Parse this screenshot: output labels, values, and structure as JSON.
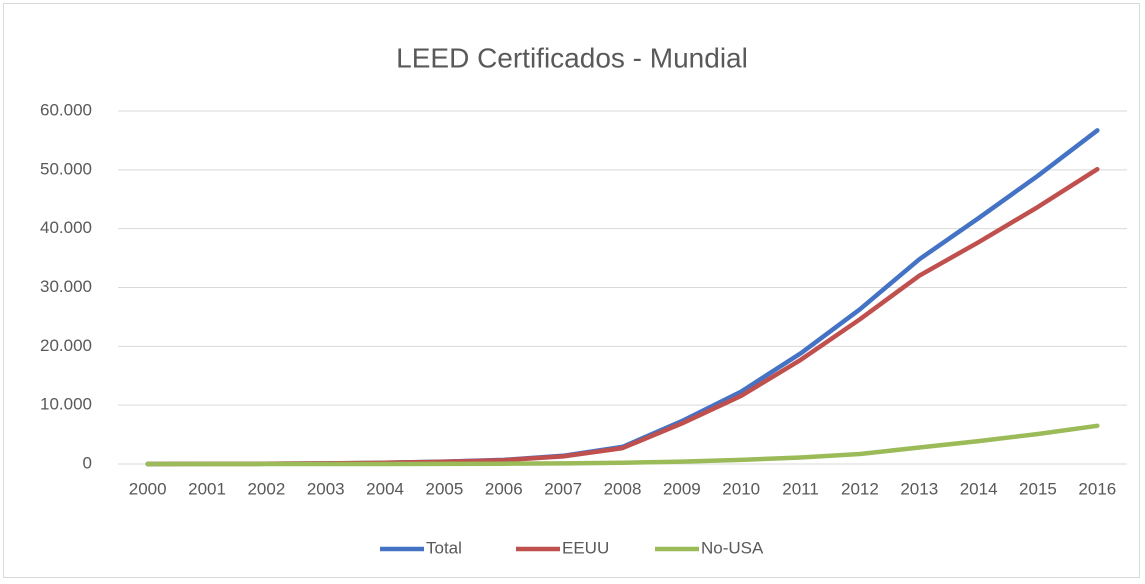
{
  "chart_data": {
    "type": "line",
    "title": "LEED Certificados - Mundial",
    "categories": [
      "2000",
      "2001",
      "2002",
      "2003",
      "2004",
      "2005",
      "2006",
      "2007",
      "2008",
      "2009",
      "2010",
      "2011",
      "2012",
      "2013",
      "2014",
      "2015",
      "2016"
    ],
    "series": [
      {
        "name": "Total",
        "color": "#4472c4",
        "values": [
          0,
          10,
          40,
          100,
          200,
          400,
          700,
          1400,
          2900,
          7300,
          12300,
          18800,
          26300,
          34800,
          41800,
          49000,
          56700
        ]
      },
      {
        "name": "EEUU",
        "color": "#c0504d",
        "values": [
          0,
          10,
          40,
          100,
          200,
          380,
          650,
          1300,
          2700,
          6900,
          11600,
          17700,
          24600,
          32000,
          37700,
          43700,
          50100
        ]
      },
      {
        "name": "No-USA",
        "color": "#9bbb59",
        "values": [
          0,
          0,
          0,
          0,
          0,
          20,
          50,
          100,
          200,
          400,
          700,
          1100,
          1700,
          2800,
          3900,
          5100,
          6500
        ]
      }
    ],
    "ylim": [
      0,
      60000
    ],
    "yticks": [
      0,
      {
        "value": 10000,
        "label": "10.000"
      },
      {
        "value": 20000,
        "label": "20.000"
      },
      {
        "value": 30000,
        "label": "30.000"
      },
      {
        "value": 40000,
        "label": "40.000"
      },
      {
        "value": 50000,
        "label": "50.000"
      },
      {
        "value": 60000,
        "label": "60.000"
      }
    ],
    "grid": true,
    "legend": "bottom"
  }
}
